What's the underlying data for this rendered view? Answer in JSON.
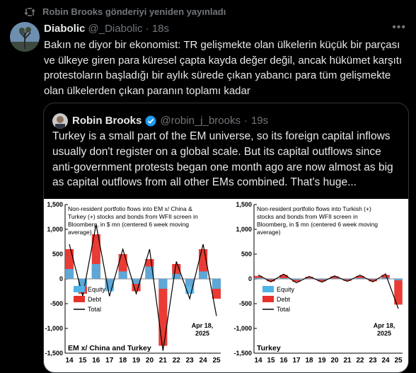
{
  "repost": {
    "text": "Robin Brooks gönderiyi yeniden yayınladı",
    "icon": "repost-icon"
  },
  "tweet": {
    "author_name": "Diabolic",
    "handle": "@_Diabolic",
    "separator": "·",
    "time": "18s",
    "text": "Bakın ne diyor bir ekonomist: TR gelişmekte olan ülkelerin küçük bir parçası ve ülkeye giren para küresel çapta kayda değer değil, ancak hükümet karşıtı protestoların başladığı bir aylık sürede çıkan yabancı para tüm gelişmekte olan ülkelerden çıkan paranın toplamı kadar"
  },
  "quote": {
    "author_name": "Robin Brooks",
    "handle": "@robin_j_brooks",
    "separator": "·",
    "time": "19s",
    "verified_icon": "verified-badge-icon",
    "text": "Turkey is a small part of the EM universe, so its foreign capital inflows usually don't register on a global scale. But its capital outflows since anti-government protests began one month ago are now almost as big as capital outflows from all other EMs combined. That's huge..."
  },
  "chart_data": [
    {
      "type": "bar",
      "title": "Non-resident portfolio flows into EM x/ China & Turkey (+) stocks and bonds from WFII screen in Bloomberg, in $ mn (centered 6 week moving average)",
      "panel_label": "EM x/ China and Turkey",
      "annotation": "Apr 18, 2025",
      "x_ticks": [
        "14",
        "15",
        "16",
        "17",
        "18",
        "19",
        "20",
        "21",
        "22",
        "23",
        "24",
        "25"
      ],
      "y_ticks": [
        "1,500",
        "1,000",
        "500",
        "0",
        "-500",
        "-1,000",
        "-1,500"
      ],
      "ylim": [
        -1500,
        1500
      ],
      "series": [
        {
          "name": "Equity",
          "values": [
            200,
            -150,
            300,
            -250,
            150,
            -100,
            250,
            -200,
            100,
            -300,
            150,
            -200
          ]
        },
        {
          "name": "Debt",
          "values": [
            600,
            -300,
            900,
            -200,
            500,
            -250,
            400,
            -1350,
            300,
            -150,
            600,
            -400
          ]
        },
        {
          "name": "Total",
          "values": [
            700,
            -350,
            1100,
            -350,
            600,
            -300,
            600,
            -1450,
            350,
            -400,
            700,
            -750
          ]
        }
      ],
      "colors": {
        "Equity": "#4fb3e8",
        "Debt": "#e8312a",
        "Total": "#000000"
      }
    },
    {
      "type": "bar",
      "title": "Non-resident portfolio flows into Turkish (+) stocks and bonds from WFII screen in Bloomberg, in $ mn (centered 6 week moving average)",
      "panel_label": "Turkey",
      "annotation": "Apr 18, 2025",
      "x_ticks": [
        "14",
        "15",
        "16",
        "17",
        "18",
        "19",
        "20",
        "21",
        "22",
        "23",
        "24",
        "25"
      ],
      "y_ticks": [
        "1,500",
        "1,000",
        "500",
        "0",
        "-500",
        "-1,000",
        "-1,500"
      ],
      "ylim": [
        -1500,
        1500
      ],
      "series": [
        {
          "name": "Equity",
          "values": [
            20,
            -10,
            15,
            -20,
            10,
            -15,
            10,
            -10,
            15,
            -10,
            20,
            -30
          ]
        },
        {
          "name": "Debt",
          "values": [
            60,
            -50,
            80,
            -60,
            40,
            -50,
            50,
            -40,
            60,
            -50,
            80,
            -520
          ]
        },
        {
          "name": "Total",
          "values": [
            80,
            -60,
            95,
            -80,
            50,
            -65,
            60,
            -50,
            75,
            -60,
            100,
            -600
          ]
        }
      ],
      "colors": {
        "Equity": "#4fb3e8",
        "Debt": "#e8312a",
        "Total": "#000000"
      }
    }
  ]
}
